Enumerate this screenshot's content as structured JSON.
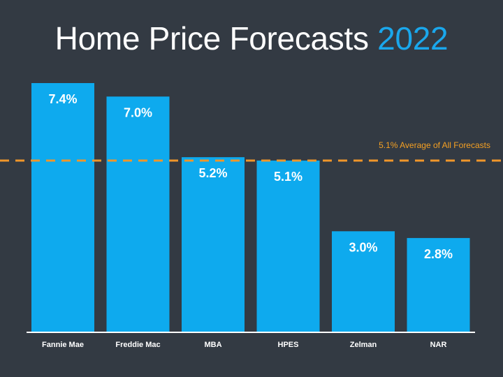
{
  "chart_data": {
    "type": "bar",
    "title": "Home Price Forecasts",
    "title_accent": "2022",
    "categories": [
      "Fannie Mae",
      "Freddie Mac",
      "MBA",
      "HPES",
      "Zelman",
      "NAR"
    ],
    "values": [
      7.4,
      7.0,
      5.2,
      5.1,
      3.0,
      2.8
    ],
    "value_labels": [
      "7.4%",
      "7.0%",
      "5.2%",
      "5.1%",
      "3.0%",
      "2.8%"
    ],
    "ylim": [
      0,
      7.4
    ],
    "grid": false,
    "reference_line": {
      "value": 5.1,
      "label": "5.1% Average of All Forecasts",
      "style": "dashed"
    },
    "colors": {
      "background": "#333a43",
      "bar": "#0eaaee",
      "accent": "#1aa7ec",
      "reference_line": "#f0962a"
    }
  }
}
